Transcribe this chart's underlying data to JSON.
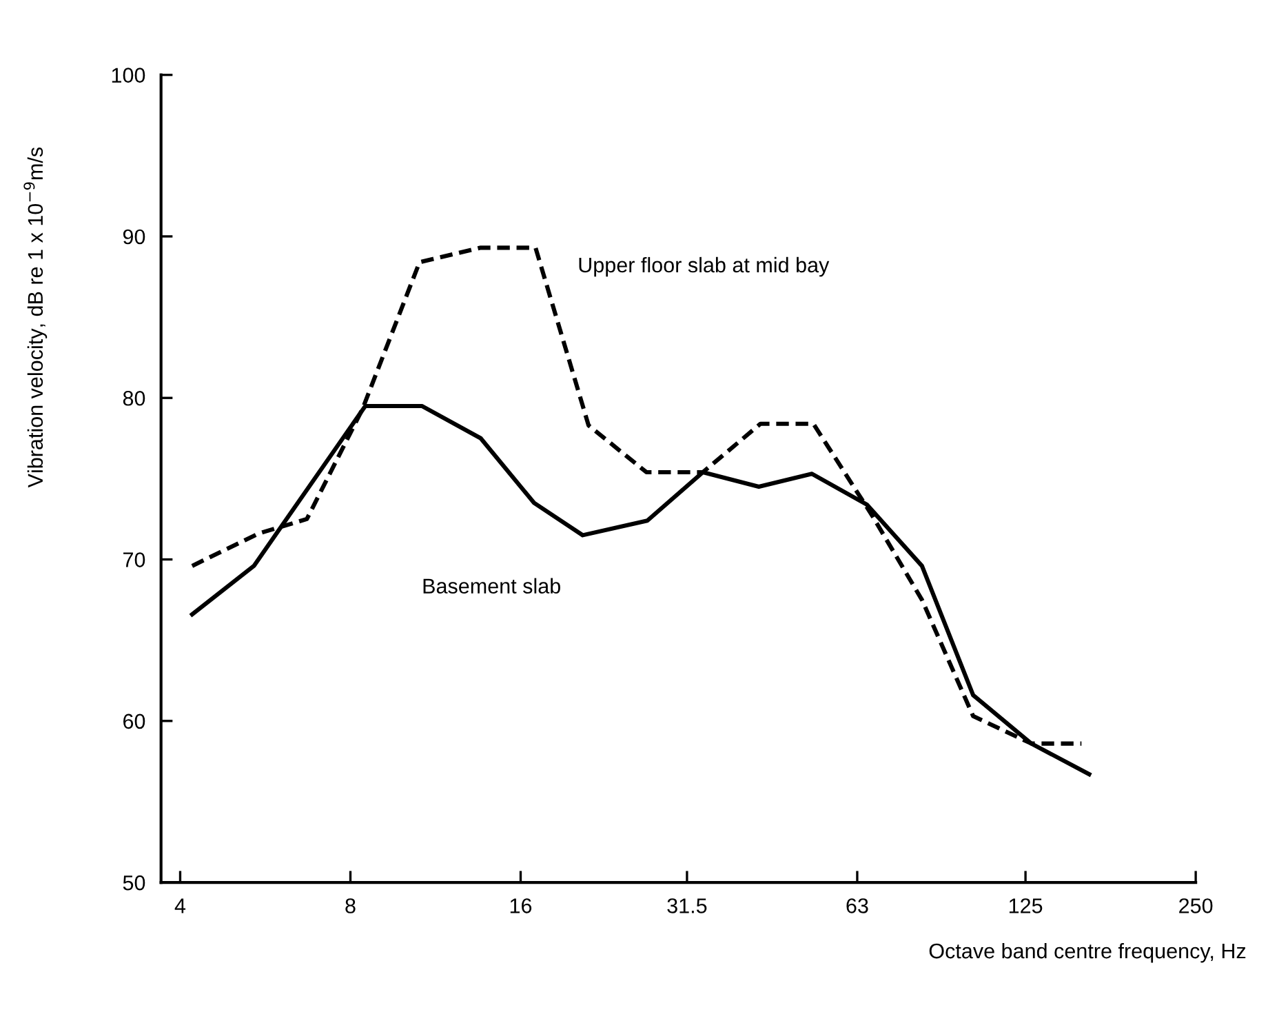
{
  "chart_data": {
    "type": "line",
    "xlabel": "Octave band centre frequency, Hz",
    "ylabel": "Vibration velocity, dB re 1 x 10$^{−9}$m/s",
    "log": "x",
    "xlim": [
      3.7,
      250
    ],
    "xticks": [
      4,
      8,
      16,
      31.5,
      63,
      125,
      250
    ],
    "ylim": [
      50,
      100
    ],
    "yticks": [
      50,
      60,
      70,
      80,
      90,
      100
    ],
    "grid": false,
    "legend": false,
    "marker": "none",
    "series": [
      {
        "name": "Basement slab",
        "color": "#000000",
        "line_style": "solid",
        "x": [
          4.2,
          5.4,
          8.5,
          10.7,
          13.6,
          16.9,
          20.6,
          26.8,
          33.6,
          42.2,
          52.4,
          65.5,
          82,
          101,
          128,
          162
        ],
        "values": [
          66.6,
          69.6,
          79.5,
          79.5,
          77.5,
          73.5,
          71.5,
          72.4,
          75.4,
          74.5,
          75.3,
          73.4,
          69.6,
          61.6,
          58.6,
          56.7
        ]
      },
      {
        "name": "Upper floor slab at mid bay",
        "color": "#000000",
        "line_style": "dashed",
        "x": [
          4.2,
          5.5,
          6.7,
          8.4,
          10.6,
          13.6,
          17,
          21.1,
          26.7,
          33.6,
          42.5,
          52.7,
          67,
          82,
          101,
          128,
          157
        ],
        "values": [
          69.6,
          71.6,
          72.5,
          79.3,
          88.4,
          89.3,
          89.3,
          78.3,
          75.4,
          75.4,
          78.4,
          78.4,
          72.7,
          67.5,
          60.3,
          58.6,
          58.6
        ]
      }
    ]
  }
}
